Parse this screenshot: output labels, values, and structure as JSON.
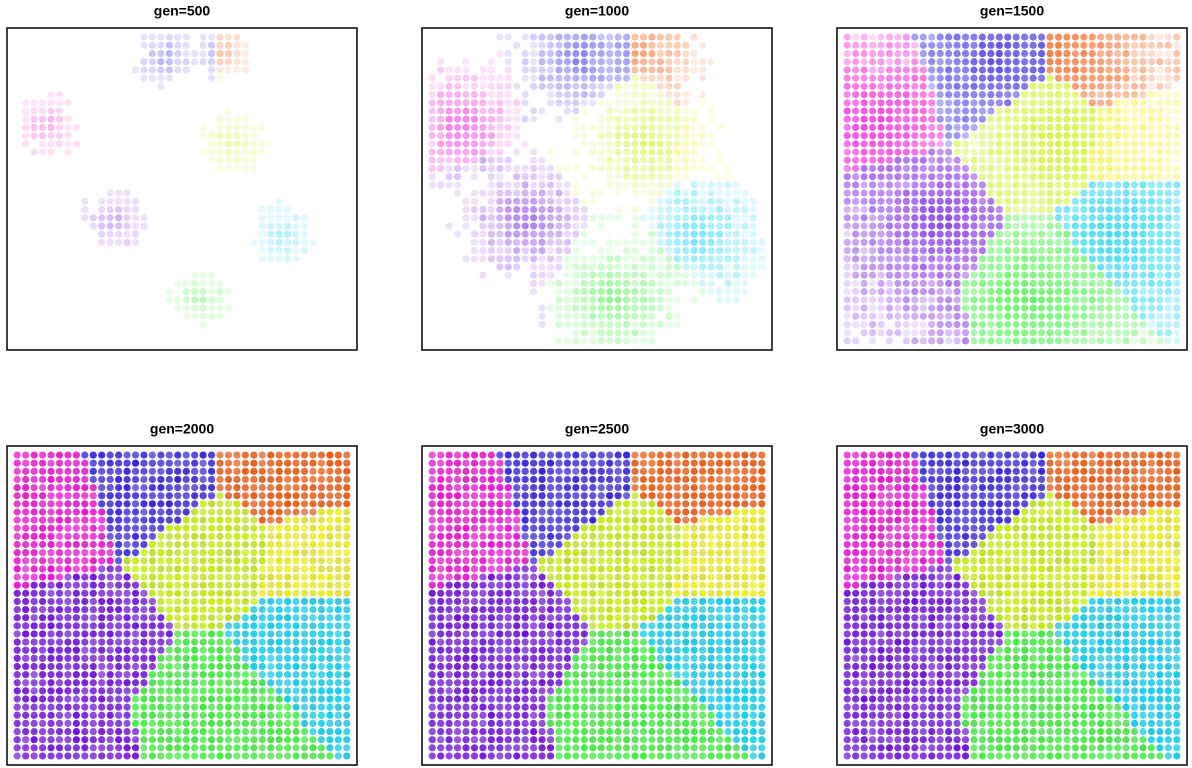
{
  "panels": [
    {
      "title": "gen=500"
    },
    {
      "title": "gen=1000"
    },
    {
      "title": "gen=1500"
    },
    {
      "title": "gen=2000"
    },
    {
      "title": "gen=2500"
    },
    {
      "title": "gen=3000"
    }
  ]
}
